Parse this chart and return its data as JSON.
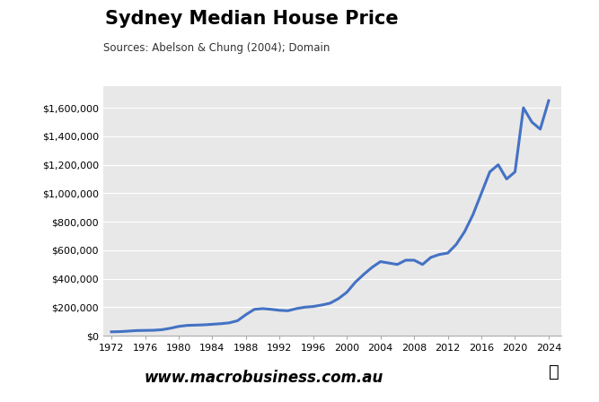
{
  "title": "Sydney Median House Price",
  "subtitle": "Sources: Abelson & Chung (2004); Domain",
  "line_color": "#4472C4",
  "line_width": 2.2,
  "bg_color": "#E8E8E8",
  "fig_bg_color": "#FFFFFF",
  "years": [
    1972,
    1973,
    1974,
    1975,
    1976,
    1977,
    1978,
    1979,
    1980,
    1981,
    1982,
    1983,
    1984,
    1985,
    1986,
    1987,
    1988,
    1989,
    1990,
    1991,
    1992,
    1993,
    1994,
    1995,
    1996,
    1997,
    1998,
    1999,
    2000,
    2001,
    2002,
    2003,
    2004,
    2005,
    2006,
    2007,
    2008,
    2009,
    2010,
    2011,
    2012,
    2013,
    2014,
    2015,
    2016,
    2017,
    2018,
    2019,
    2020,
    2021,
    2022,
    2023,
    2024
  ],
  "prices": [
    27000,
    28500,
    32000,
    36000,
    37000,
    38000,
    42000,
    52000,
    65000,
    72000,
    74000,
    76000,
    80000,
    84000,
    90000,
    105000,
    148000,
    185000,
    190000,
    185000,
    178000,
    175000,
    190000,
    200000,
    205000,
    215000,
    228000,
    260000,
    305000,
    375000,
    430000,
    480000,
    520000,
    510000,
    500000,
    530000,
    530000,
    500000,
    550000,
    570000,
    580000,
    640000,
    730000,
    850000,
    1000000,
    1150000,
    1200000,
    1100000,
    1150000,
    1600000,
    1500000,
    1450000,
    1650000
  ],
  "xlim": [
    1971,
    2025.5
  ],
  "ylim": [
    0,
    1750000
  ],
  "yticks": [
    0,
    200000,
    400000,
    600000,
    800000,
    1000000,
    1200000,
    1400000,
    1600000
  ],
  "xticks": [
    1972,
    1976,
    1980,
    1984,
    1988,
    1992,
    1996,
    2000,
    2004,
    2008,
    2012,
    2016,
    2020,
    2024
  ],
  "website": "www.macrobusiness.com.au",
  "macro_bg": "#CC1111",
  "macro_text": "#FFFFFF"
}
